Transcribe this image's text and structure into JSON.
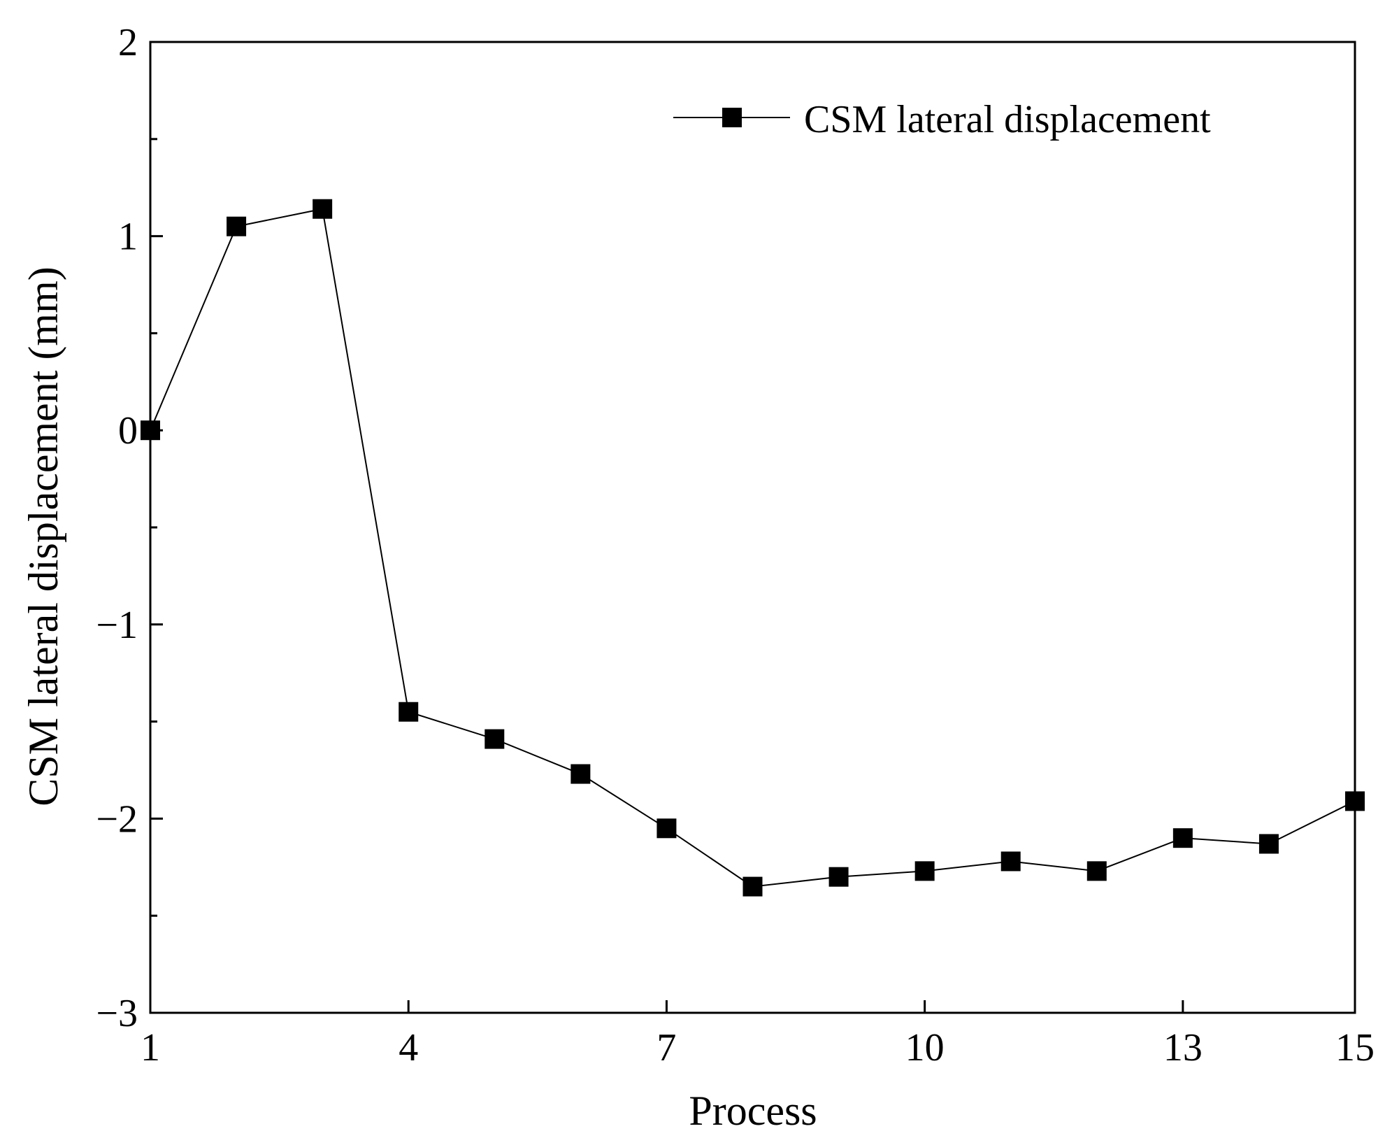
{
  "chart_data": {
    "type": "line",
    "title": "",
    "xlabel": "Process",
    "ylabel": "CSM lateral displacement (mm)",
    "xlim": [
      1,
      15
    ],
    "ylim": [
      -3,
      2
    ],
    "x_ticks": [
      1,
      4,
      7,
      10,
      13,
      15
    ],
    "x_tick_labels": [
      "1",
      "4",
      "7",
      "10",
      "13",
      "15"
    ],
    "y_ticks": [
      -3,
      -2,
      -1,
      0,
      1,
      2
    ],
    "y_tick_labels": [
      "−3",
      "−2",
      "−1",
      "0",
      "1",
      "2"
    ],
    "y_minor_step": 0.5,
    "grid": false,
    "legend_position": "top-right",
    "series": [
      {
        "name": "CSM lateral displacement",
        "marker": "square",
        "color": "#000000",
        "x": [
          1,
          2,
          3,
          4,
          5,
          6,
          7,
          8,
          9,
          10,
          11,
          12,
          13,
          14,
          15
        ],
        "values": [
          0,
          1.05,
          1.14,
          -1.45,
          -1.59,
          -1.77,
          -2.05,
          -2.35,
          -2.3,
          -2.27,
          -2.22,
          -2.27,
          -2.1,
          -2.13,
          -1.91
        ]
      }
    ]
  }
}
